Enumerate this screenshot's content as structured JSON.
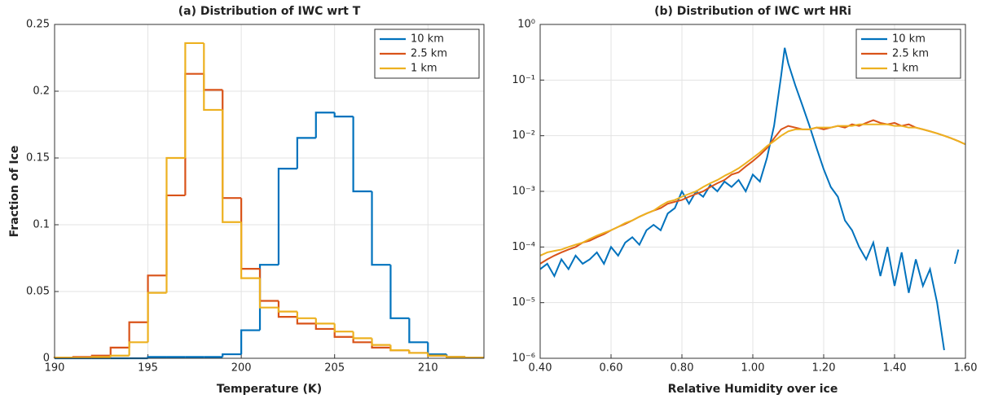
{
  "chart_data": [
    {
      "type": "histogram",
      "title": "(a)  Distribution of IWC wrt T",
      "xlabel": "Temperature (K)",
      "ylabel": "Fraction of Ice",
      "bins": [
        190,
        191,
        192,
        193,
        194,
        195,
        196,
        197,
        198,
        199,
        200,
        201,
        202,
        203,
        204,
        205,
        206,
        207,
        208,
        209,
        210,
        211,
        212,
        213
      ],
      "series": [
        {
          "name": "10 km",
          "color": "#0072bd",
          "values": [
            0,
            0,
            0,
            0,
            0,
            0.001,
            0.001,
            0.001,
            0.001,
            0.003,
            0.021,
            0.07,
            0.142,
            0.165,
            0.184,
            0.181,
            0.125,
            0.07,
            0.03,
            0.012,
            0.003,
            0.001,
            0.0005
          ]
        },
        {
          "name": "2.5 km",
          "color": "#d95319",
          "values": [
            0.0005,
            0.001,
            0.002,
            0.008,
            0.027,
            0.062,
            0.122,
            0.213,
            0.201,
            0.12,
            0.067,
            0.043,
            0.031,
            0.026,
            0.022,
            0.016,
            0.012,
            0.008,
            0.006,
            0.004,
            0.002,
            0.001,
            0.0005
          ]
        },
        {
          "name": "1 km",
          "color": "#edb120",
          "values": [
            0.0005,
            0.0005,
            0.001,
            0.002,
            0.012,
            0.049,
            0.15,
            0.236,
            0.186,
            0.102,
            0.06,
            0.038,
            0.035,
            0.03,
            0.026,
            0.02,
            0.015,
            0.01,
            0.006,
            0.004,
            0.002,
            0.001,
            0.0005
          ]
        }
      ],
      "xlim": [
        190,
        213
      ],
      "xticks": [
        190,
        195,
        200,
        205,
        210
      ],
      "ylim": [
        0,
        0.25
      ],
      "yticks": [
        0,
        0.05,
        0.1,
        0.15,
        0.2,
        0.25
      ],
      "grid": true,
      "legend": "northeast"
    },
    {
      "type": "line",
      "title": "(b) Distribution of IWC wrt HRi",
      "xlabel": "Relative Humidity over ice",
      "log_y": true,
      "series": [
        {
          "name": "10 km",
          "color": "#0072bd",
          "x": [
            0.4,
            0.42,
            0.44,
            0.46,
            0.48,
            0.5,
            0.52,
            0.54,
            0.56,
            0.58,
            0.6,
            0.62,
            0.64,
            0.66,
            0.68,
            0.7,
            0.72,
            0.74,
            0.76,
            0.78,
            0.8,
            0.82,
            0.84,
            0.86,
            0.88,
            0.9,
            0.92,
            0.94,
            0.96,
            0.98,
            1.0,
            1.02,
            1.04,
            1.06,
            1.08,
            1.09,
            1.1,
            1.12,
            1.14,
            1.16,
            1.18,
            1.2,
            1.22,
            1.24,
            1.26,
            1.28,
            1.3,
            1.32,
            1.34,
            1.36,
            1.38,
            1.4,
            1.42,
            1.44,
            1.46,
            1.48,
            1.5,
            1.52,
            1.54,
            1.56,
            1.57,
            1.58
          ],
          "values": [
            4e-05,
            5e-05,
            3e-05,
            6e-05,
            4e-05,
            7e-05,
            5e-05,
            6e-05,
            8e-05,
            5e-05,
            0.0001,
            7e-05,
            0.00012,
            0.00015,
            0.00011,
            0.0002,
            0.00025,
            0.0002,
            0.0004,
            0.0005,
            0.001,
            0.0006,
            0.001,
            0.0008,
            0.0013,
            0.001,
            0.0015,
            0.0012,
            0.0016,
            0.001,
            0.002,
            0.0015,
            0.004,
            0.015,
            0.12,
            0.38,
            0.2,
            0.08,
            0.035,
            0.015,
            0.006,
            0.0025,
            0.0012,
            0.0008,
            0.0003,
            0.0002,
            0.0001,
            6e-05,
            0.00012,
            3e-05,
            0.0001,
            2e-05,
            8e-05,
            1.5e-05,
            6e-05,
            2e-05,
            4e-05,
            1e-05,
            1.4e-06,
            null,
            5e-05,
            9e-05
          ]
        },
        {
          "name": "2.5 km",
          "color": "#d95319",
          "x": [
            0.4,
            0.42,
            0.44,
            0.46,
            0.48,
            0.5,
            0.52,
            0.54,
            0.56,
            0.58,
            0.6,
            0.62,
            0.64,
            0.66,
            0.68,
            0.7,
            0.72,
            0.74,
            0.76,
            0.78,
            0.8,
            0.82,
            0.84,
            0.86,
            0.88,
            0.9,
            0.92,
            0.94,
            0.96,
            0.98,
            1.0,
            1.02,
            1.04,
            1.06,
            1.08,
            1.1,
            1.12,
            1.14,
            1.16,
            1.18,
            1.2,
            1.22,
            1.24,
            1.26,
            1.28,
            1.3,
            1.32,
            1.34,
            1.36,
            1.38,
            1.4,
            1.42,
            1.44,
            1.46,
            1.48,
            1.5,
            1.52,
            1.54,
            1.56,
            1.58,
            1.6
          ],
          "values": [
            5e-05,
            6e-05,
            7e-05,
            8e-05,
            9e-05,
            0.0001,
            0.00012,
            0.00013,
            0.00015,
            0.00017,
            0.0002,
            0.00023,
            0.00026,
            0.0003,
            0.00035,
            0.0004,
            0.00045,
            0.0005,
            0.0006,
            0.00065,
            0.0007,
            0.0008,
            0.0009,
            0.001,
            0.0012,
            0.0014,
            0.0016,
            0.002,
            0.0022,
            0.0028,
            0.0035,
            0.0045,
            0.006,
            0.009,
            0.013,
            0.015,
            0.014,
            0.013,
            0.013,
            0.014,
            0.013,
            0.014,
            0.015,
            0.014,
            0.016,
            0.015,
            0.017,
            0.019,
            0.017,
            0.016,
            0.017,
            0.015,
            0.016,
            0.014,
            0.013,
            0.012,
            0.011,
            0.01,
            0.009,
            0.008,
            0.007
          ]
        },
        {
          "name": "1 km",
          "color": "#edb120",
          "x": [
            0.4,
            0.42,
            0.44,
            0.46,
            0.48,
            0.5,
            0.52,
            0.54,
            0.56,
            0.58,
            0.6,
            0.62,
            0.64,
            0.66,
            0.68,
            0.7,
            0.72,
            0.74,
            0.76,
            0.78,
            0.8,
            0.82,
            0.84,
            0.86,
            0.88,
            0.9,
            0.92,
            0.94,
            0.96,
            0.98,
            1.0,
            1.02,
            1.04,
            1.06,
            1.08,
            1.1,
            1.12,
            1.14,
            1.16,
            1.18,
            1.2,
            1.22,
            1.24,
            1.26,
            1.28,
            1.3,
            1.32,
            1.34,
            1.36,
            1.38,
            1.4,
            1.42,
            1.44,
            1.46,
            1.48,
            1.5,
            1.52,
            1.54,
            1.56,
            1.58,
            1.6
          ],
          "values": [
            7e-05,
            8e-05,
            8.5e-05,
            9e-05,
            0.0001,
            0.00011,
            0.00012,
            0.00014,
            0.00016,
            0.00018,
            0.0002,
            0.00023,
            0.00027,
            0.0003,
            0.00035,
            0.0004,
            0.00045,
            0.00055,
            0.00065,
            0.0007,
            0.0008,
            0.0009,
            0.001,
            0.0012,
            0.0014,
            0.0016,
            0.0019,
            0.0022,
            0.0026,
            0.0032,
            0.004,
            0.005,
            0.0065,
            0.008,
            0.01,
            0.012,
            0.013,
            0.013,
            0.013,
            0.014,
            0.014,
            0.014,
            0.015,
            0.015,
            0.015,
            0.016,
            0.016,
            0.016,
            0.016,
            0.016,
            0.015,
            0.015,
            0.014,
            0.014,
            0.013,
            0.012,
            0.011,
            0.01,
            0.009,
            0.008,
            0.007
          ]
        }
      ],
      "xlim": [
        0.4,
        1.6
      ],
      "xticks": [
        {
          "value": 0.4,
          "label": "0.40"
        },
        {
          "value": 0.6,
          "label": "0.60"
        },
        {
          "value": 0.8,
          "label": "0.80"
        },
        {
          "value": 1.0,
          "label": "1.00"
        },
        {
          "value": 1.2,
          "label": "1.20"
        },
        {
          "value": 1.4,
          "label": "1.40"
        },
        {
          "value": 1.6,
          "label": "1.60"
        }
      ],
      "ylim": [
        1e-06,
        1
      ],
      "yticks": [
        {
          "value": 1e-06,
          "label": "10⁻⁶"
        },
        {
          "value": 1e-05,
          "label": "10⁻⁵"
        },
        {
          "value": 0.0001,
          "label": "10⁻⁴"
        },
        {
          "value": 0.001,
          "label": "10⁻³"
        },
        {
          "value": 0.01,
          "label": "10⁻²"
        },
        {
          "value": 0.1,
          "label": "10⁻¹"
        },
        {
          "value": 1,
          "label": "10⁰"
        }
      ],
      "grid": true,
      "legend": "northeast"
    }
  ]
}
